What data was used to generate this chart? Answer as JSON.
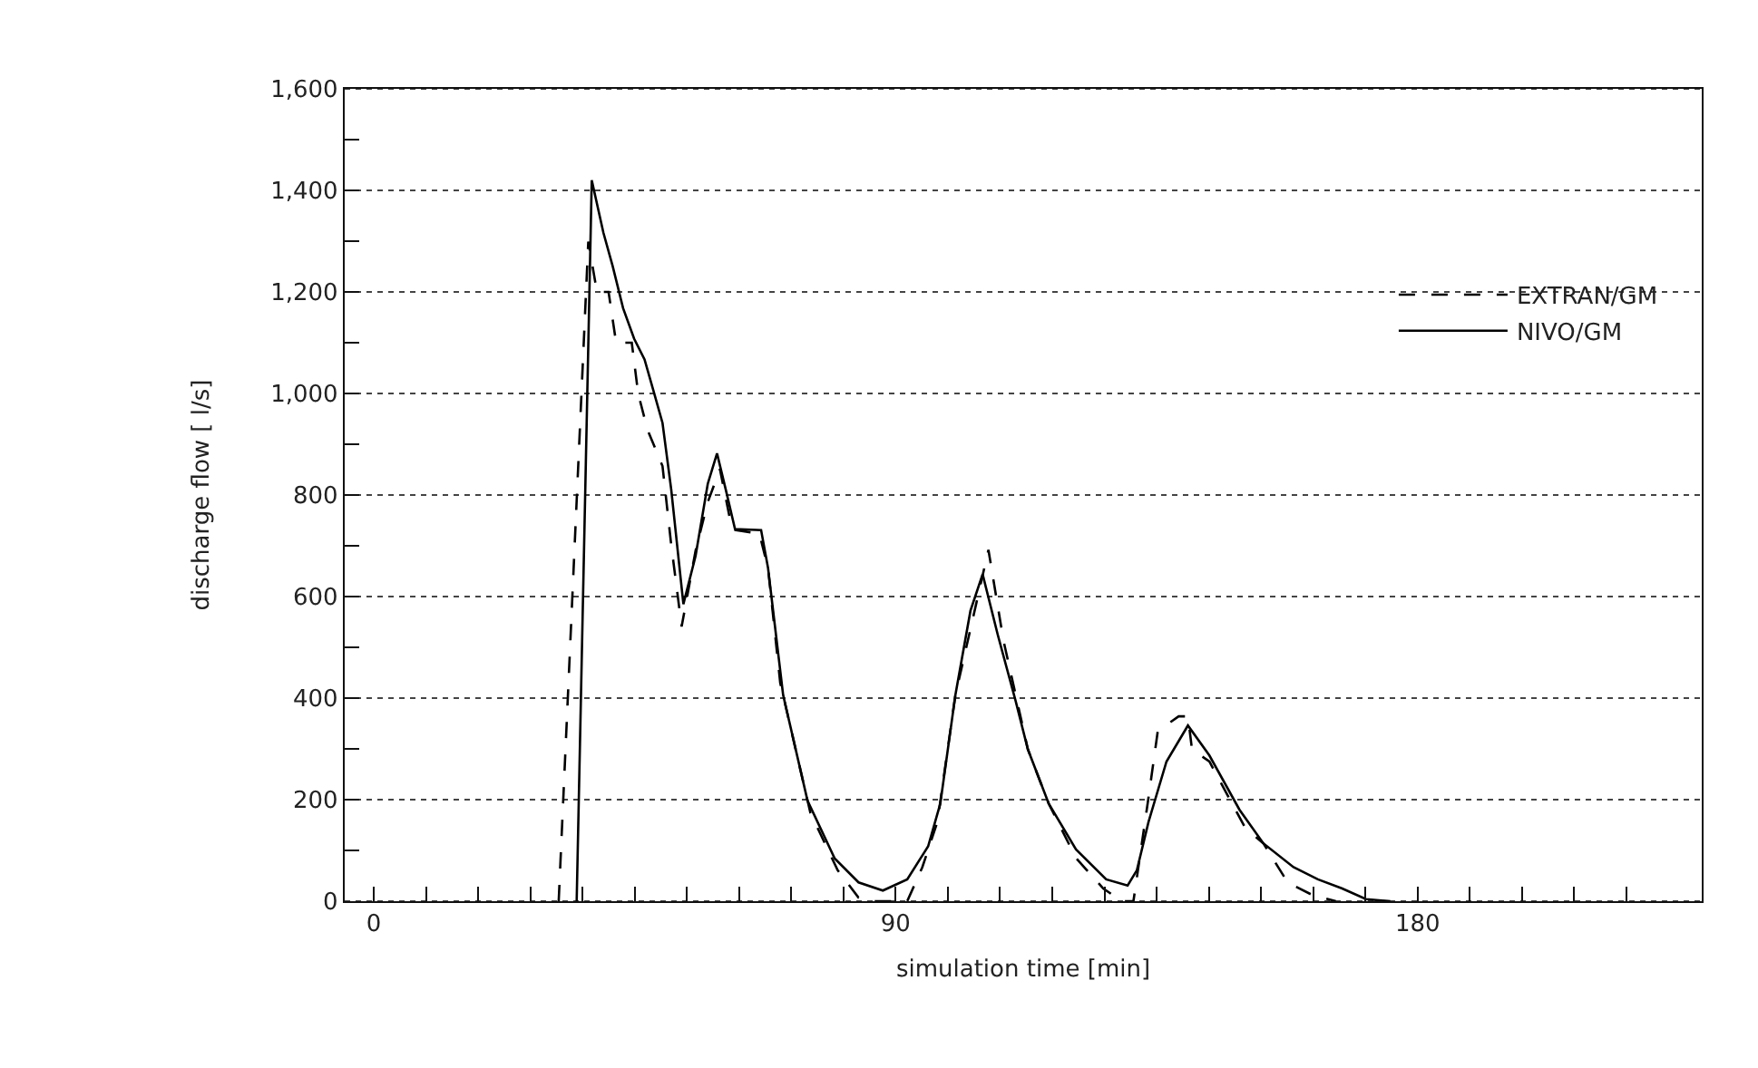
{
  "chart_data": {
    "type": "line",
    "xlabel": "simulation time [min]",
    "ylabel": "discharge flow [ l/s]",
    "xlim": [
      -5,
      229
    ],
    "ylim": [
      0,
      1600
    ],
    "xticks": [
      0,
      {
        "value": 9,
        "label": null
      },
      {
        "value": 18,
        "label": null
      },
      {
        "value": 27,
        "label": null
      },
      {
        "value": 36,
        "label": null
      },
      {
        "value": 45,
        "label": null
      },
      {
        "value": 54,
        "label": null
      },
      {
        "value": 63,
        "label": null
      },
      {
        "value": 72,
        "label": null
      },
      {
        "value": 81,
        "label": null
      },
      90,
      {
        "value": 99,
        "label": null
      },
      {
        "value": 108,
        "label": null
      },
      {
        "value": 117,
        "label": null
      },
      {
        "value": 126,
        "label": null
      },
      {
        "value": 135,
        "label": null
      },
      {
        "value": 144,
        "label": null
      },
      {
        "value": 153,
        "label": null
      },
      {
        "value": 162,
        "label": null
      },
      {
        "value": 171,
        "label": null
      },
      180,
      {
        "value": 189,
        "label": null
      },
      {
        "value": 198,
        "label": null
      },
      {
        "value": 207,
        "label": null
      },
      {
        "value": 216,
        "label": null
      }
    ],
    "yticks": [
      0,
      {
        "value": 100,
        "label": null
      },
      {
        "value": 200,
        "label": "200"
      },
      {
        "value": 300,
        "label": null
      },
      {
        "value": 400,
        "label": "400"
      },
      {
        "value": 500,
        "label": null
      },
      {
        "value": 600,
        "label": "600"
      },
      {
        "value": 700,
        "label": null
      },
      {
        "value": 800,
        "label": "800"
      },
      {
        "value": 900,
        "label": null
      },
      {
        "value": 1000,
        "label": "1,000"
      },
      {
        "value": 1100,
        "label": null
      },
      {
        "value": 1200,
        "label": "1,200"
      },
      {
        "value": 1300,
        "label": null
      },
      {
        "value": 1400,
        "label": "1,400"
      },
      {
        "value": 1500,
        "label": null
      },
      {
        "value": 1600,
        "label": "1,600"
      }
    ],
    "grid": "y",
    "legend": "right",
    "marker": "none",
    "series": [
      {
        "name": "EXTRAN/GM",
        "color": "#000000",
        "line_style": "dashed",
        "x": [
          31.9,
          37,
          38.5,
          40.5,
          41.8,
          44.5,
          45.6,
          47.2,
          49.8,
          51.3,
          53.1,
          55.5,
          57.6,
          59.7,
          61.8,
          66.5,
          68,
          70.1,
          75.3,
          80,
          83.6,
          85.7,
          92,
          94.6,
          97.2,
          100.3,
          102.9,
          106,
          108.6,
          112.8,
          116.4,
          121.1,
          125.8,
          129,
          131,
          133.6,
          135.2,
          138.8,
          140.4,
          141.1,
          144.1,
          150.3,
          153.4,
          157.6,
          161.7,
          165.9
        ],
        "values": [
          0,
          1299,
          1200,
          1200,
          1100,
          1100,
          1000,
          929,
          857,
          702,
          541,
          690,
          786,
          851,
          732,
          724,
          656,
          430,
          174,
          61,
          7,
          0,
          0,
          67,
          156,
          406,
          536,
          692,
          513,
          299,
          192,
          85,
          25,
          0,
          0,
          204,
          335,
          364,
          364,
          299,
          275,
          144,
          114,
          37,
          13,
          0
        ]
      },
      {
        "name": "NIVO/GM",
        "color": "#000000",
        "line_style": "solid",
        "x": [
          35,
          37.6,
          39.6,
          41.2,
          43,
          44.9,
          46.7,
          48.2,
          49.8,
          51.3,
          53.4,
          55.5,
          57.6,
          59.2,
          60.7,
          62.3,
          66.8,
          68,
          70.6,
          74.8,
          79.5,
          83.6,
          87.8,
          92,
          95.6,
          97.7,
          100.3,
          102.9,
          105,
          107.6,
          110.7,
          112.8,
          116.4,
          121.1,
          126.3,
          130,
          131.6,
          133.6,
          136.7,
          140.4,
          144.1,
          149.3,
          153.4,
          158.6,
          162.8,
          167,
          171.1,
          175.3
        ],
        "values": [
          0,
          1420,
          1317,
          1251,
          1168,
          1108,
          1067,
          1007,
          942,
          811,
          585,
          680,
          822,
          882,
          811,
          733,
          731,
          656,
          406,
          198,
          84,
          37,
          21,
          43,
          108,
          192,
          406,
          572,
          644,
          525,
          394,
          299,
          192,
          102,
          43,
          31,
          61,
          156,
          275,
          346,
          287,
          180,
          114,
          67,
          43,
          25,
          4,
          0
        ]
      }
    ]
  }
}
